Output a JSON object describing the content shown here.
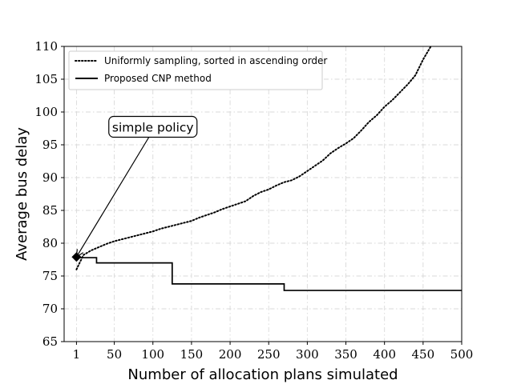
{
  "chart_data": {
    "type": "line",
    "title": "",
    "xlabel": "Number of allocation plans simulated",
    "ylabel": "Average bus delay",
    "xlim": [
      -15,
      500
    ],
    "ylim": [
      65,
      110
    ],
    "xticks": [
      1,
      50,
      100,
      150,
      200,
      250,
      300,
      350,
      400,
      450,
      500
    ],
    "yticks": [
      65,
      70,
      75,
      80,
      85,
      90,
      95,
      100,
      105,
      110
    ],
    "grid": true,
    "legend_position": "top-left",
    "series": [
      {
        "name": "Uniformly sampling, sorted in ascending order",
        "style": "dotted",
        "color": "#000000",
        "x": [
          1,
          10,
          20,
          30,
          40,
          50,
          60,
          70,
          80,
          90,
          100,
          110,
          120,
          130,
          140,
          150,
          160,
          170,
          180,
          190,
          200,
          210,
          220,
          230,
          240,
          250,
          260,
          270,
          280,
          290,
          300,
          310,
          320,
          330,
          340,
          350,
          360,
          370,
          380,
          390,
          400,
          410,
          420,
          430,
          440,
          450,
          460
        ],
        "y": [
          76,
          78.2,
          78.9,
          79.4,
          79.9,
          80.3,
          80.6,
          80.9,
          81.2,
          81.5,
          81.8,
          82.2,
          82.5,
          82.8,
          83.1,
          83.4,
          83.9,
          84.3,
          84.7,
          85.2,
          85.6,
          86,
          86.4,
          87.2,
          87.8,
          88.2,
          88.8,
          89.3,
          89.6,
          90.2,
          91,
          91.8,
          92.6,
          93.7,
          94.5,
          95.2,
          96,
          97.2,
          98.5,
          99.5,
          100.8,
          101.8,
          103,
          104.2,
          105.6,
          108,
          110
        ]
      },
      {
        "name": "Proposed CNP method",
        "style": "solid",
        "color": "#000000",
        "step": true,
        "x": [
          1,
          6,
          27,
          125,
          270,
          500
        ],
        "y": [
          77.9,
          77.8,
          77,
          73.8,
          72.8,
          72.8
        ]
      }
    ],
    "annotations": [
      {
        "text": "simple policy",
        "point": [
          1,
          77.9
        ],
        "label_at": [
          100,
          97.5
        ],
        "marker": "diamond"
      }
    ]
  }
}
